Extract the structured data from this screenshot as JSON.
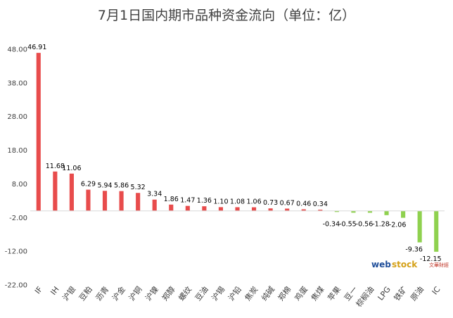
{
  "chart_data": {
    "type": "bar",
    "title": "7月1日国内期市品种资金流向（单位：亿）",
    "xlabel": "",
    "ylabel": "",
    "ylim": [
      -22,
      53
    ],
    "yticks": [
      "48.00",
      "38.00",
      "28.00",
      "18.00",
      "8.00",
      "-2.00",
      "-12.00",
      "-22.00"
    ],
    "grid": false,
    "categories": [
      "IF",
      "IH",
      "沪银",
      "豆粕",
      "沥青",
      "沪金",
      "沪铜",
      "沪镍",
      "郑醇",
      "螺纹",
      "豆油",
      "沪锡",
      "沪铅",
      "焦炭",
      "纯碱",
      "郑棉",
      "鸡蛋",
      "焦煤",
      "苹果",
      "豆一",
      "棕榈油",
      "LPG",
      "铁矿",
      "原油",
      "IC"
    ],
    "values": [
      46.91,
      11.68,
      11.06,
      6.29,
      5.94,
      5.86,
      5.32,
      3.34,
      1.86,
      1.47,
      1.36,
      1.1,
      1.08,
      1.06,
      0.73,
      0.67,
      0.46,
      0.34,
      -0.34,
      -0.55,
      -0.56,
      -1.28,
      -2.06,
      -9.36,
      -12.15
    ],
    "data_labels": [
      "46.91",
      "11.68",
      "11.06",
      "6.29",
      "5.94",
      "5.86",
      "5.32",
      "3.34",
      "1.86",
      "1.47",
      "1.36",
      "1.10",
      "1.08",
      "1.06",
      "0.73",
      "0.67",
      "0.46",
      "0.34",
      "-0.34",
      "-0.55",
      "-0.56",
      "-1.28",
      "-2.06",
      "-9.36",
      "-12.15"
    ],
    "colors": {
      "positive": "#e84c4c",
      "negative": "#8fd14f",
      "axis": "#d9d9d9",
      "text": "#404040"
    }
  },
  "watermark": {
    "logo_web": "web",
    "logo_stock": "stock",
    "brand": "文華財經",
    "colors": {
      "web": "#1f4e9a",
      "stock": "#d4a017"
    }
  }
}
